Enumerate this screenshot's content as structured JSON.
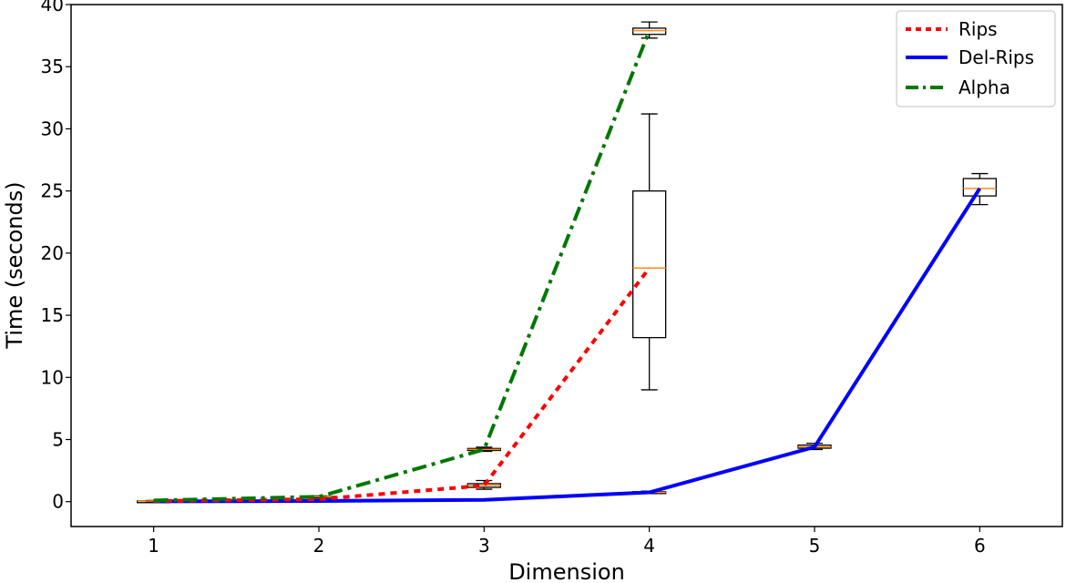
{
  "chart_data": {
    "type": "line",
    "title": "",
    "xlabel": "Dimension",
    "ylabel": "Time (seconds)",
    "x": [
      1,
      2,
      3,
      4,
      5,
      6
    ],
    "xlim": [
      0.5,
      6.5
    ],
    "ylim": [
      -2,
      40
    ],
    "xticks": [
      "1",
      "2",
      "3",
      "4",
      "5",
      "6"
    ],
    "yticks": [
      "0",
      "5",
      "10",
      "15",
      "20",
      "25",
      "30",
      "35",
      "40"
    ],
    "grid": false,
    "legend_position": "top-right",
    "series": [
      {
        "name": "Rips",
        "style": "dotted",
        "color": "#ff0000",
        "values": [
          0.05,
          0.2,
          1.3,
          18.8,
          null,
          null
        ],
        "boxes": [
          {
            "x": 1,
            "whisker_low": 0.0,
            "q1": 0.03,
            "median": 0.05,
            "q3": 0.07,
            "whisker_high": 0.1
          },
          {
            "x": 2,
            "whisker_low": 0.15,
            "q1": 0.18,
            "median": 0.2,
            "q3": 0.23,
            "whisker_high": 0.27
          },
          {
            "x": 3,
            "whisker_low": 1.0,
            "q1": 1.15,
            "median": 1.3,
            "q3": 1.45,
            "whisker_high": 1.7
          },
          {
            "x": 4,
            "whisker_low": 9.0,
            "q1": 13.2,
            "median": 18.8,
            "q3": 25.0,
            "whisker_high": 31.2
          }
        ]
      },
      {
        "name": "Del-Rips",
        "style": "solid",
        "color": "#0000ff",
        "values": [
          0.02,
          0.05,
          0.15,
          0.75,
          4.4,
          25.2
        ],
        "boxes": [
          {
            "x": 4,
            "whisker_low": 0.65,
            "q1": 0.7,
            "median": 0.75,
            "q3": 0.8,
            "whisker_high": 0.85
          },
          {
            "x": 5,
            "whisker_low": 4.2,
            "q1": 4.3,
            "median": 4.4,
            "q3": 4.55,
            "whisker_high": 4.7
          },
          {
            "x": 6,
            "whisker_low": 23.9,
            "q1": 24.6,
            "median": 25.2,
            "q3": 26.0,
            "whisker_high": 26.4
          }
        ]
      },
      {
        "name": "Alpha",
        "style": "dashdot",
        "color": "#007700",
        "values": [
          0.1,
          0.4,
          4.2,
          37.9,
          null,
          null
        ],
        "boxes": [
          {
            "x": 2,
            "whisker_low": 0.35,
            "q1": 0.38,
            "median": 0.4,
            "q3": 0.43,
            "whisker_high": 0.46
          },
          {
            "x": 3,
            "whisker_low": 4.05,
            "q1": 4.12,
            "median": 4.2,
            "q3": 4.28,
            "whisker_high": 4.38
          },
          {
            "x": 4,
            "whisker_low": 37.3,
            "q1": 37.6,
            "median": 37.9,
            "q3": 38.1,
            "whisker_high": 38.6
          }
        ]
      }
    ]
  }
}
